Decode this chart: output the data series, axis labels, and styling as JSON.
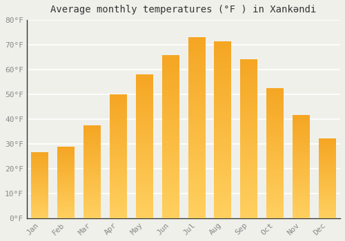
{
  "title": "Average monthly temperatures (°F ) in Xankəndi",
  "months": [
    "Jan",
    "Feb",
    "Mar",
    "Apr",
    "May",
    "Jun",
    "Jul",
    "Aug",
    "Sep",
    "Oct",
    "Nov",
    "Dec"
  ],
  "values": [
    26.5,
    28.8,
    37.5,
    50.0,
    58.0,
    65.8,
    73.0,
    71.2,
    64.2,
    52.3,
    41.5,
    32.0
  ],
  "bar_color_top": "#F5A623",
  "bar_color_bottom": "#FFD060",
  "background_color": "#F0F0EB",
  "grid_color": "#FFFFFF",
  "ylim": [
    0,
    80
  ],
  "yticks": [
    0,
    10,
    20,
    30,
    40,
    50,
    60,
    70,
    80
  ],
  "ytick_labels": [
    "0°F",
    "10°F",
    "20°F",
    "30°F",
    "40°F",
    "50°F",
    "60°F",
    "70°F",
    "80°F"
  ],
  "title_fontsize": 10,
  "tick_fontsize": 8,
  "tick_color": "#888888",
  "font_family": "monospace",
  "bar_width": 0.65,
  "left_spine_color": "#333333"
}
